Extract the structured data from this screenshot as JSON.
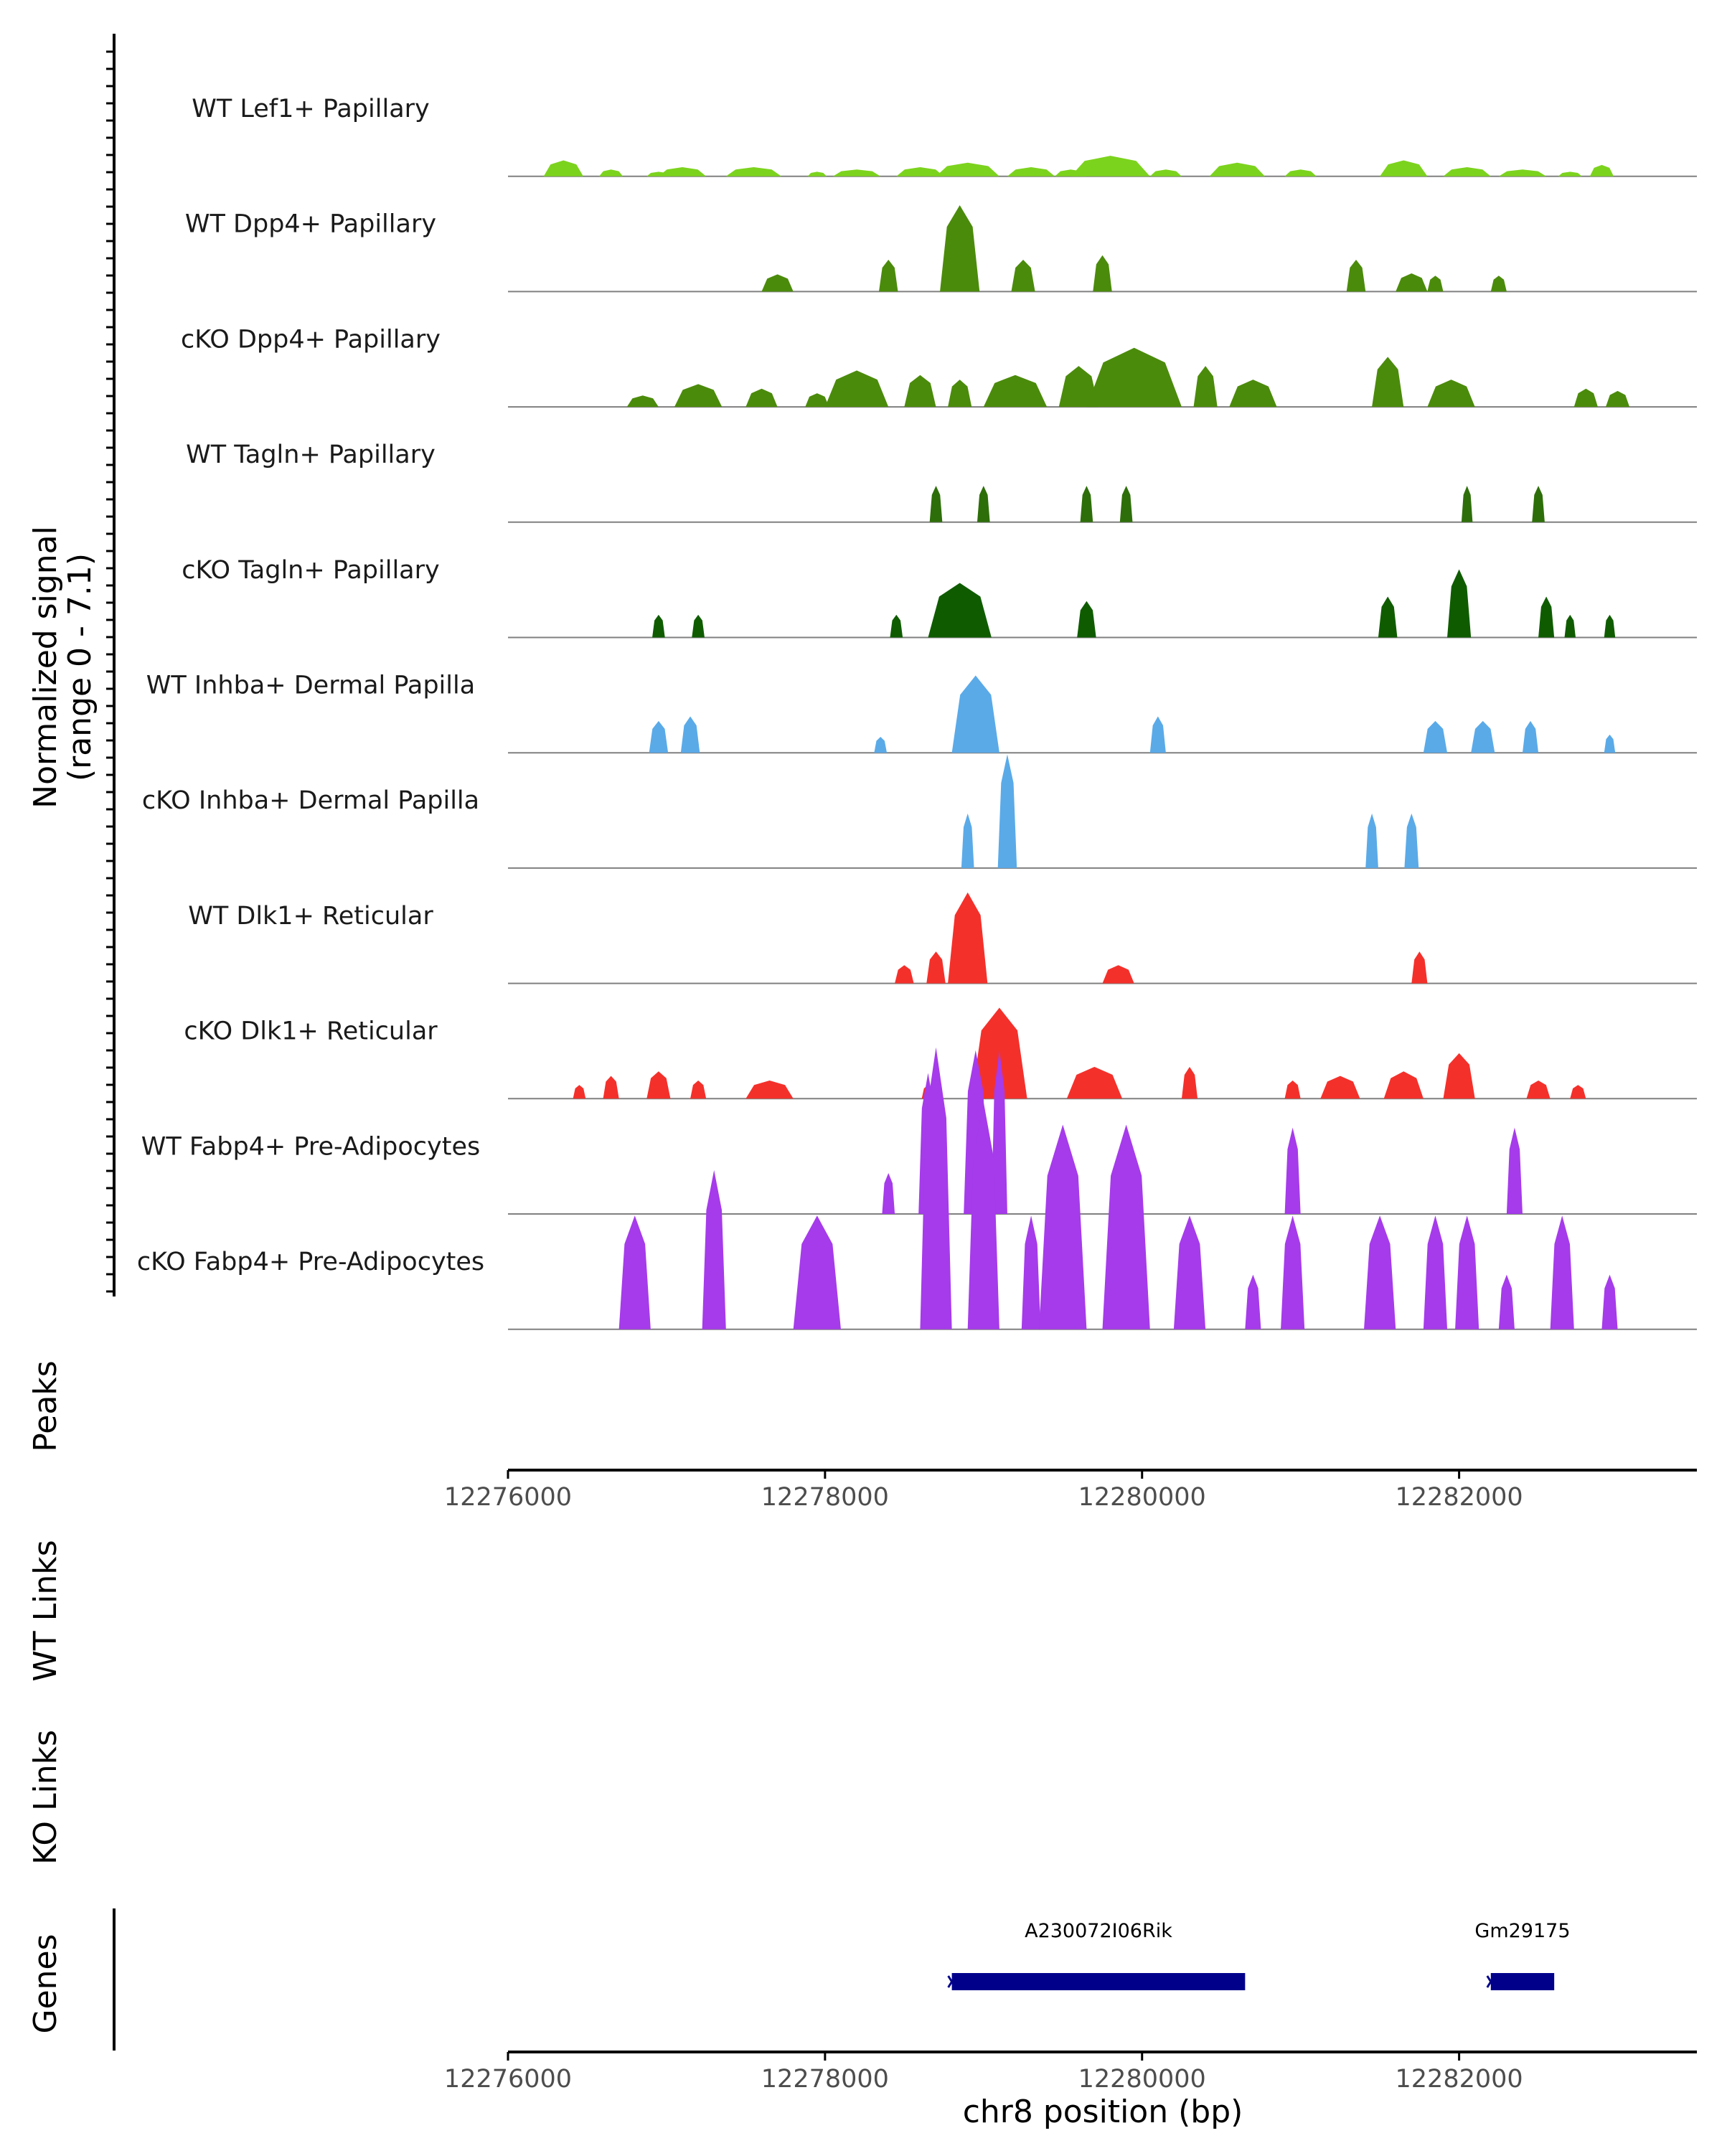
{
  "chart_data": {
    "type": "area",
    "x_label": "chr8 position (bp)",
    "xlim": [
      12276000,
      12283500
    ],
    "x_ticks": [
      12276000,
      12278000,
      12280000,
      12282000
    ],
    "x_tick_labels": [
      "12276000",
      "12278000",
      "12280000",
      "12282000"
    ],
    "y_label_line1": "Normalized signal",
    "y_label_line2": "(range 0 - 7.1)",
    "ylim": [
      0,
      7.1
    ],
    "tracks": [
      {
        "name": "WT Lef1+ Papillary",
        "color": "#7CD31D",
        "peaks": [
          [
            12276350,
            0.35,
            250
          ],
          [
            12276650,
            0.15,
            150
          ],
          [
            12276950,
            0.1,
            150
          ],
          [
            12277100,
            0.2,
            300
          ],
          [
            12277550,
            0.2,
            350
          ],
          [
            12277950,
            0.1,
            120
          ],
          [
            12278200,
            0.15,
            300
          ],
          [
            12278600,
            0.2,
            300
          ],
          [
            12278900,
            0.3,
            400
          ],
          [
            12279300,
            0.2,
            300
          ],
          [
            12279550,
            0.15,
            200
          ],
          [
            12279800,
            0.45,
            500
          ],
          [
            12280150,
            0.15,
            200
          ],
          [
            12280600,
            0.3,
            350
          ],
          [
            12281000,
            0.15,
            200
          ],
          [
            12281650,
            0.35,
            300
          ],
          [
            12282050,
            0.2,
            300
          ],
          [
            12282400,
            0.15,
            300
          ],
          [
            12282700,
            0.1,
            150
          ],
          [
            12282900,
            0.25,
            150
          ]
        ]
      },
      {
        "name": "WT Dpp4+ Papillary",
        "color": "#4B8B0B",
        "peaks": [
          [
            12277700,
            0.38,
            200
          ],
          [
            12278400,
            0.7,
            120
          ],
          [
            12278850,
            1.9,
            250
          ],
          [
            12279250,
            0.7,
            150
          ],
          [
            12279750,
            0.8,
            120
          ],
          [
            12281350,
            0.7,
            120
          ],
          [
            12281700,
            0.4,
            200
          ],
          [
            12281850,
            0.35,
            100
          ],
          [
            12282250,
            0.35,
            100
          ]
        ]
      },
      {
        "name": "cKO Dpp4+ Papillary",
        "color": "#4B8B0B",
        "peaks": [
          [
            12276850,
            0.25,
            200
          ],
          [
            12277200,
            0.5,
            300
          ],
          [
            12277600,
            0.4,
            200
          ],
          [
            12277950,
            0.3,
            150
          ],
          [
            12278200,
            0.8,
            400
          ],
          [
            12278600,
            0.7,
            200
          ],
          [
            12278850,
            0.6,
            150
          ],
          [
            12279200,
            0.7,
            400
          ],
          [
            12279600,
            0.9,
            250
          ],
          [
            12279950,
            1.3,
            600
          ],
          [
            12280400,
            0.9,
            150
          ],
          [
            12280700,
            0.6,
            300
          ],
          [
            12281550,
            1.1,
            200
          ],
          [
            12281950,
            0.6,
            300
          ],
          [
            12282800,
            0.4,
            150
          ],
          [
            12283000,
            0.35,
            150
          ]
        ]
      },
      {
        "name": "WT Tagln+ Papillary",
        "color": "#2E6E0A",
        "peaks": [
          [
            12278700,
            0.8,
            80
          ],
          [
            12279000,
            0.8,
            80
          ],
          [
            12279650,
            0.8,
            80
          ],
          [
            12279900,
            0.8,
            80
          ],
          [
            12282050,
            0.8,
            70
          ],
          [
            12282500,
            0.8,
            80
          ]
        ]
      },
      {
        "name": "cKO Tagln+ Papillary",
        "color": "#0F5C00",
        "peaks": [
          [
            12276950,
            0.5,
            80
          ],
          [
            12277200,
            0.5,
            80
          ],
          [
            12278450,
            0.5,
            80
          ],
          [
            12278850,
            1.2,
            400
          ],
          [
            12279650,
            0.8,
            120
          ],
          [
            12281550,
            0.9,
            120
          ],
          [
            12282000,
            1.5,
            150
          ],
          [
            12282550,
            0.9,
            100
          ],
          [
            12282700,
            0.5,
            70
          ],
          [
            12282950,
            0.5,
            70
          ]
        ]
      },
      {
        "name": "WT Inhba+ Dermal Papilla",
        "color": "#5AAAE8",
        "peaks": [
          [
            12276950,
            0.7,
            120
          ],
          [
            12277150,
            0.8,
            120
          ],
          [
            12278350,
            0.35,
            80
          ],
          [
            12278950,
            1.7,
            300
          ],
          [
            12280100,
            0.8,
            100
          ],
          [
            12281850,
            0.7,
            150
          ],
          [
            12282150,
            0.7,
            150
          ],
          [
            12282450,
            0.7,
            100
          ],
          [
            12282950,
            0.4,
            70
          ]
        ]
      },
      {
        "name": "cKO Inhba+ Dermal Papilla",
        "color": "#5AAAE8",
        "peaks": [
          [
            12278900,
            1.2,
            80
          ],
          [
            12279150,
            2.5,
            120
          ],
          [
            12281450,
            1.2,
            80
          ],
          [
            12281700,
            1.2,
            90
          ]
        ]
      },
      {
        "name": "WT Dlk1+ Reticular",
        "color": "#F4302B",
        "peaks": [
          [
            12278500,
            0.4,
            120
          ],
          [
            12278700,
            0.7,
            120
          ],
          [
            12278900,
            2.0,
            250
          ],
          [
            12279850,
            0.4,
            200
          ],
          [
            12281750,
            0.7,
            100
          ]
        ]
      },
      {
        "name": "cKO Dlk1+ Reticular",
        "color": "#F4302B",
        "peaks": [
          [
            12276450,
            0.3,
            80
          ],
          [
            12276650,
            0.5,
            100
          ],
          [
            12276950,
            0.6,
            150
          ],
          [
            12277200,
            0.4,
            100
          ],
          [
            12277650,
            0.4,
            300
          ],
          [
            12278650,
            0.3,
            80
          ],
          [
            12279100,
            2.0,
            350
          ],
          [
            12279700,
            0.7,
            350
          ],
          [
            12280300,
            0.7,
            100
          ],
          [
            12280950,
            0.4,
            100
          ],
          [
            12281250,
            0.5,
            250
          ],
          [
            12281650,
            0.6,
            250
          ],
          [
            12282000,
            1.0,
            200
          ],
          [
            12282500,
            0.4,
            150
          ],
          [
            12282750,
            0.3,
            100
          ]
        ]
      },
      {
        "name": "WT Fabp4+ Pre-Adipocytes",
        "color": "#A53BEA",
        "peaks": [
          [
            12278400,
            0.9,
            80
          ],
          [
            12278650,
            3.1,
            120
          ],
          [
            12278950,
            3.6,
            150
          ],
          [
            12279100,
            3.6,
            100
          ],
          [
            12280950,
            1.9,
            100
          ],
          [
            12282350,
            1.9,
            100
          ]
        ]
      },
      {
        "name": "cKO Fabp4+ Pre-Adipocytes",
        "color": "#A53BEA",
        "peaks": [
          [
            12276800,
            2.5,
            200
          ],
          [
            12277300,
            3.5,
            150
          ],
          [
            12277950,
            2.5,
            300
          ],
          [
            12278700,
            6.2,
            200
          ],
          [
            12279000,
            5.0,
            200
          ],
          [
            12279300,
            2.5,
            120
          ],
          [
            12279500,
            4.5,
            300
          ],
          [
            12279900,
            4.5,
            300
          ],
          [
            12280300,
            2.5,
            200
          ],
          [
            12280700,
            1.2,
            100
          ],
          [
            12280950,
            2.5,
            150
          ],
          [
            12281500,
            2.5,
            200
          ],
          [
            12281850,
            2.5,
            150
          ],
          [
            12282050,
            2.5,
            150
          ],
          [
            12282300,
            1.2,
            100
          ],
          [
            12282650,
            2.5,
            150
          ],
          [
            12282950,
            1.2,
            100
          ]
        ]
      }
    ],
    "panels": [
      "Peaks",
      "WT Links",
      "KO Links",
      "Genes"
    ],
    "genes": [
      {
        "name": "A230072I06Rik",
        "start": 12278800,
        "end": 12280650
      },
      {
        "name": "Gm29175",
        "start": 12282200,
        "end": 12282600
      }
    ],
    "colors": {
      "gene": "#00008B",
      "baseline": "#808080",
      "axis": "#000000"
    }
  }
}
